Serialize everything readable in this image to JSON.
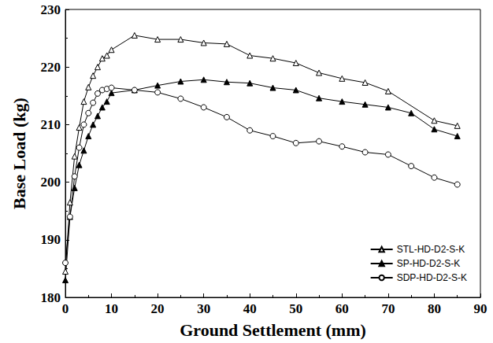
{
  "chart_data": {
    "type": "line",
    "x_label": "Ground Settlement (mm)",
    "y_label": "Base Load (kg)",
    "xlim": [
      0,
      90
    ],
    "xticks": [
      0,
      10,
      20,
      30,
      40,
      50,
      60,
      70,
      80,
      90
    ],
    "ylim": [
      180,
      230
    ],
    "yticks": [
      180,
      190,
      200,
      210,
      220,
      230
    ],
    "grid": false,
    "legend": "lower right",
    "series": [
      {
        "name": "STL-HD-D2-S-K",
        "color": "#000000",
        "marker": "triangle-open",
        "line_style": "solid",
        "x": [
          0,
          1,
          2,
          3,
          4,
          5,
          6,
          7,
          8,
          9,
          10,
          15,
          20,
          25,
          30,
          35,
          40,
          45,
          50,
          55,
          60,
          65,
          70,
          80,
          85
        ],
        "values": [
          184.5,
          196.5,
          204.5,
          209.5,
          214,
          216.5,
          218.5,
          220,
          221.5,
          222,
          223,
          225.5,
          224.8,
          224.8,
          224.2,
          224,
          222,
          221.5,
          220.7,
          219,
          218,
          217.3,
          215.8,
          210.7,
          209.8
        ]
      },
      {
        "name": "SP-HD-D2-S-K",
        "color": "#000000",
        "marker": "triangle-filled",
        "line_style": "solid",
        "x": [
          0,
          1,
          2,
          3,
          4,
          5,
          6,
          7,
          8,
          9,
          10,
          15,
          20,
          25,
          30,
          35,
          40,
          45,
          50,
          55,
          60,
          65,
          70,
          75,
          80,
          85
        ],
        "values": [
          183,
          194,
          199,
          203,
          205.5,
          208,
          210,
          211.5,
          213,
          214,
          215.5,
          216,
          216.8,
          217.5,
          217.8,
          217.4,
          217.2,
          216.4,
          216,
          214.6,
          214,
          213.5,
          213,
          212,
          209.2,
          208
        ]
      },
      {
        "name": "SDP-HD-D2-S-K",
        "color": "#000000",
        "marker": "circle-open",
        "line_style": "solid",
        "x": [
          0,
          1,
          2,
          3,
          4,
          5,
          6,
          7,
          8,
          9,
          10,
          15,
          20,
          25,
          30,
          35,
          40,
          45,
          50,
          55,
          60,
          65,
          70,
          75,
          80,
          85
        ],
        "values": [
          186,
          194,
          201,
          206,
          210,
          212,
          213.8,
          215.4,
          216,
          216.2,
          216.4,
          216,
          215.6,
          214.5,
          213,
          211.3,
          209,
          208,
          206.8,
          207.1,
          206.2,
          205.2,
          204.8,
          202.8,
          200.8,
          199.6
        ]
      }
    ]
  }
}
